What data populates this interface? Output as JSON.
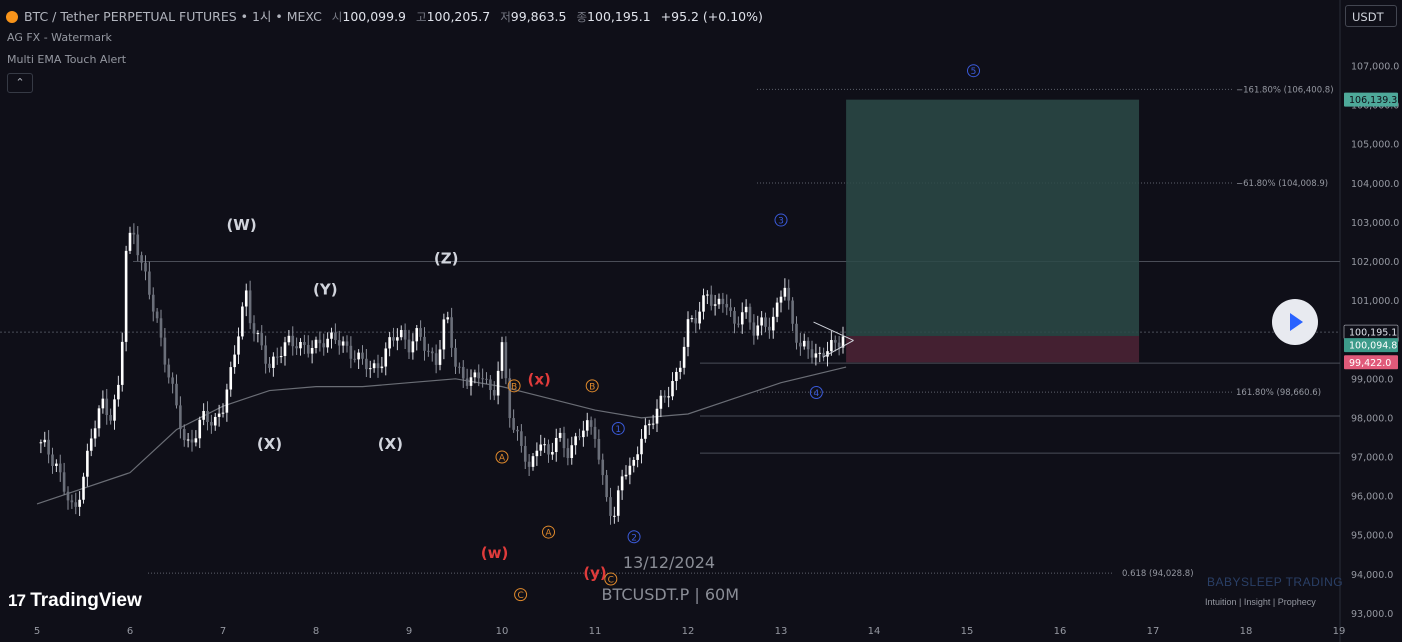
{
  "header": {
    "symbol": "BTC / Tether PERPETUAL FUTURES • 1시 • MEXC",
    "open_label": "시",
    "open": "100,099.9",
    "high_label": "고",
    "high": "100,205.7",
    "low_label": "저",
    "low": "99,863.5",
    "close_label": "종",
    "close": "100,195.1",
    "change": "+95.2 (+0.10%)"
  },
  "indicators": [
    "AG FX - Watermark",
    "Multi EMA Touch Alert"
  ],
  "currency_button": "USDT",
  "brand": {
    "logo": "TradingView",
    "watermark": "BABYSLEEP TRADING",
    "tagline": "Intuition | Insight | Prophecy"
  },
  "chart_text": {
    "date": "13/12/2024",
    "ticker": "BTCUSDT.P | 60M"
  },
  "price_axis": [
    "107,000.0",
    "106,000.0",
    "105,000.0",
    "104,000.0",
    "103,000.0",
    "102,000.0",
    "101,000.0",
    "100,000.0",
    "99,000.0",
    "98,000.0",
    "97,000.0",
    "96,000.0",
    "95,000.0",
    "94,000.0",
    "93,000.0"
  ],
  "time_axis": [
    "5",
    "6",
    "7",
    "8",
    "9",
    "10",
    "11",
    "12",
    "13",
    "14",
    "15",
    "16",
    "17",
    "18",
    "19"
  ],
  "colors": {
    "background": "#0f0f18",
    "up_candle": "#ffffff",
    "down_candle": "#6b6f7a",
    "target_zone": "#2b4a48",
    "stop_zone": "#4a2234",
    "wave_blue": "#3b5bdb",
    "wave_orange": "#e08a2c",
    "wave_red": "#e03b3b",
    "ema": "#6a6d75"
  },
  "chart_data": {
    "type": "candlestick",
    "symbol": "BTCUSDT.P",
    "timeframe": "60M",
    "exchange": "MEXC",
    "y_axis_range": [
      93000,
      107500
    ],
    "x_axis_days": [
      5,
      19
    ],
    "candle_path": [
      [
        5.0,
        97350
      ],
      [
        5.1,
        97200
      ],
      [
        5.2,
        96900
      ],
      [
        5.3,
        96100
      ],
      [
        5.4,
        95500
      ],
      [
        5.5,
        96600
      ],
      [
        5.6,
        97600
      ],
      [
        5.7,
        98400
      ],
      [
        5.8,
        98100
      ],
      [
        5.9,
        98900
      ],
      [
        5.95,
        102200
      ],
      [
        6.0,
        102600
      ],
      [
        6.05,
        102800
      ],
      [
        6.1,
        102200
      ],
      [
        6.2,
        101200
      ],
      [
        6.3,
        100400
      ],
      [
        6.4,
        99300
      ],
      [
        6.5,
        98200
      ],
      [
        6.6,
        97300
      ],
      [
        6.7,
        97600
      ],
      [
        6.8,
        98000
      ],
      [
        6.9,
        97900
      ],
      [
        7.0,
        98300
      ],
      [
        7.1,
        99200
      ],
      [
        7.2,
        100800
      ],
      [
        7.25,
        101200
      ],
      [
        7.3,
        100400
      ],
      [
        7.4,
        99800
      ],
      [
        7.5,
        99400
      ],
      [
        7.6,
        99600
      ],
      [
        7.7,
        99900
      ],
      [
        7.8,
        100000
      ],
      [
        7.9,
        99700
      ],
      [
        8.0,
        99800
      ],
      [
        8.1,
        100100
      ],
      [
        8.2,
        100000
      ],
      [
        8.3,
        99800
      ],
      [
        8.4,
        99700
      ],
      [
        8.5,
        99400
      ],
      [
        8.6,
        99200
      ],
      [
        8.7,
        99500
      ],
      [
        8.8,
        99900
      ],
      [
        8.9,
        100200
      ],
      [
        9.0,
        99900
      ],
      [
        9.1,
        100100
      ],
      [
        9.2,
        99700
      ],
      [
        9.3,
        99500
      ],
      [
        9.4,
        100600
      ],
      [
        9.5,
        99400
      ],
      [
        9.6,
        99000
      ],
      [
        9.7,
        98900
      ],
      [
        9.8,
        99200
      ],
      [
        9.9,
        98500
      ],
      [
        10.0,
        99700
      ],
      [
        10.1,
        97900
      ],
      [
        10.2,
        97400
      ],
      [
        10.3,
        96500
      ],
      [
        10.4,
        97600
      ],
      [
        10.5,
        97000
      ],
      [
        10.6,
        97500
      ],
      [
        10.7,
        97200
      ],
      [
        10.8,
        97400
      ],
      [
        10.9,
        97800
      ],
      [
        11.0,
        97700
      ],
      [
        11.1,
        96100
      ],
      [
        11.2,
        95300
      ],
      [
        11.3,
        96800
      ],
      [
        11.4,
        96600
      ],
      [
        11.5,
        97500
      ],
      [
        11.6,
        98000
      ],
      [
        11.7,
        98300
      ],
      [
        11.8,
        98700
      ],
      [
        11.9,
        99300
      ],
      [
        12.0,
        100300
      ],
      [
        12.1,
        100600
      ],
      [
        12.2,
        101300
      ],
      [
        12.3,
        100700
      ],
      [
        12.4,
        101100
      ],
      [
        12.5,
        100400
      ],
      [
        12.6,
        100700
      ],
      [
        12.7,
        100300
      ],
      [
        12.8,
        100500
      ],
      [
        12.9,
        100200
      ],
      [
        13.0,
        101300
      ],
      [
        13.05,
        101500
      ],
      [
        13.1,
        100600
      ],
      [
        13.2,
        99700
      ],
      [
        13.3,
        99900
      ],
      [
        13.4,
        99500
      ],
      [
        13.5,
        99700
      ],
      [
        13.6,
        100000
      ],
      [
        13.7,
        100195
      ]
    ],
    "ema_line": [
      [
        5.0,
        95800
      ],
      [
        6.0,
        96600
      ],
      [
        6.5,
        97700
      ],
      [
        7.0,
        98300
      ],
      [
        7.5,
        98700
      ],
      [
        8.0,
        98800
      ],
      [
        8.5,
        98800
      ],
      [
        9.0,
        98900
      ],
      [
        9.5,
        99000
      ],
      [
        10.0,
        98800
      ],
      [
        10.5,
        98500
      ],
      [
        11.0,
        98200
      ],
      [
        11.5,
        98000
      ],
      [
        12.0,
        98100
      ],
      [
        12.5,
        98500
      ],
      [
        13.0,
        98900
      ],
      [
        13.7,
        99300
      ]
    ],
    "price_labels": {
      "last": "100,195.1",
      "entry": "100,094.8",
      "stop": "99,422.0",
      "target": "106,139.3"
    },
    "position": {
      "entry": 100094.8,
      "stop": 99422.0,
      "target": 106139.3,
      "start_day": 13.7,
      "end_day": 16.85
    },
    "horizontal_levels": [
      102000,
      100195.1,
      99400,
      98050,
      97100
    ],
    "fib_levels": [
      {
        "label": "−161.80% (106,400.8)",
        "value": 106400.8
      },
      {
        "label": "−61.80% (104,008.9)",
        "value": 104008.9
      },
      {
        "label": "161.80% (98,660.6)",
        "value": 98660.6
      },
      {
        "label": "0.618 (94,028.8)",
        "value": 94028.8
      }
    ],
    "wave_labels": [
      {
        "text": "(W)",
        "day": 7.2,
        "price": 102800,
        "color": "white"
      },
      {
        "text": "(X)",
        "day": 7.5,
        "price": 97200,
        "color": "white"
      },
      {
        "text": "(Y)",
        "day": 8.1,
        "price": 101150,
        "color": "white"
      },
      {
        "text": "(X)",
        "day": 8.8,
        "price": 97200,
        "color": "white"
      },
      {
        "text": "(Z)",
        "day": 9.4,
        "price": 101950,
        "color": "white"
      },
      {
        "text": "(x)",
        "day": 10.4,
        "price": 98850,
        "color": "red"
      },
      {
        "text": "(w)",
        "day": 9.92,
        "price": 94420,
        "color": "red"
      },
      {
        "text": "(y)",
        "day": 11.0,
        "price": 93900,
        "color": "red"
      },
      {
        "text": "A",
        "day": 10.0,
        "price": 97000,
        "color": "orange"
      },
      {
        "text": "B",
        "day": 10.13,
        "price": 98820,
        "color": "orange"
      },
      {
        "text": "C",
        "day": 10.2,
        "price": 93480,
        "color": "orange"
      },
      {
        "text": "A",
        "day": 10.5,
        "price": 95080,
        "color": "orange"
      },
      {
        "text": "B",
        "day": 10.97,
        "price": 98820,
        "color": "orange"
      },
      {
        "text": "C",
        "day": 11.17,
        "price": 93880,
        "color": "orange"
      },
      {
        "text": "1",
        "day": 11.25,
        "price": 97730,
        "color": "blue"
      },
      {
        "text": "2",
        "day": 11.42,
        "price": 94960,
        "color": "blue"
      },
      {
        "text": "3",
        "day": 13.0,
        "price": 103060,
        "color": "blue"
      },
      {
        "text": "4",
        "day": 13.38,
        "price": 98650,
        "color": "blue"
      },
      {
        "text": "5",
        "day": 15.07,
        "price": 106880,
        "color": "blue"
      }
    ]
  }
}
